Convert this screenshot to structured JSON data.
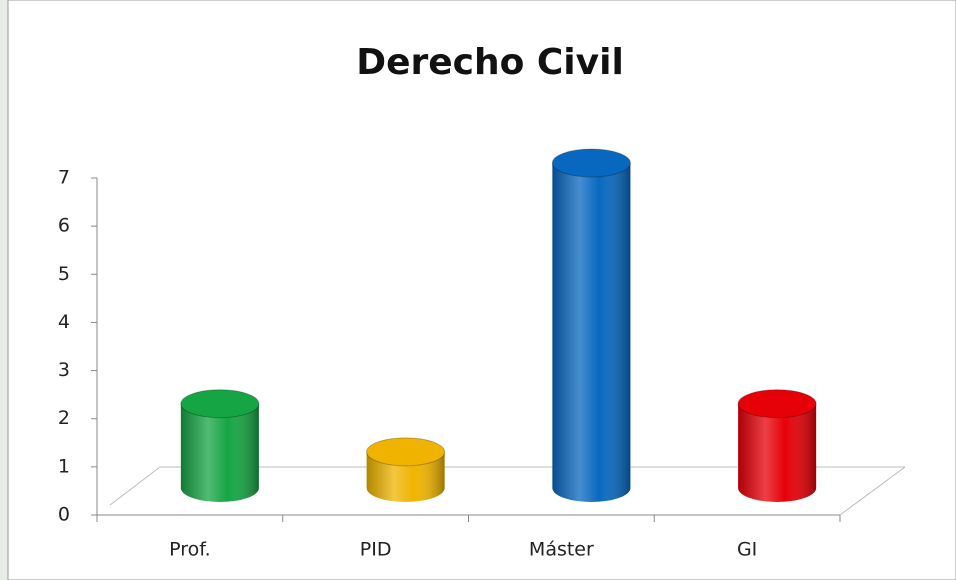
{
  "chart_data": {
    "type": "bar",
    "title": "Derecho Civil",
    "categories": [
      "Prof.",
      "PID",
      "Máster",
      "GI"
    ],
    "values": [
      2,
      1,
      7,
      2
    ],
    "colors": [
      "#16a544",
      "#f0b400",
      "#0868c0",
      "#e60008"
    ],
    "ylim": [
      0,
      7
    ],
    "yticks": [
      0,
      1,
      2,
      3,
      4,
      5,
      6,
      7
    ]
  }
}
